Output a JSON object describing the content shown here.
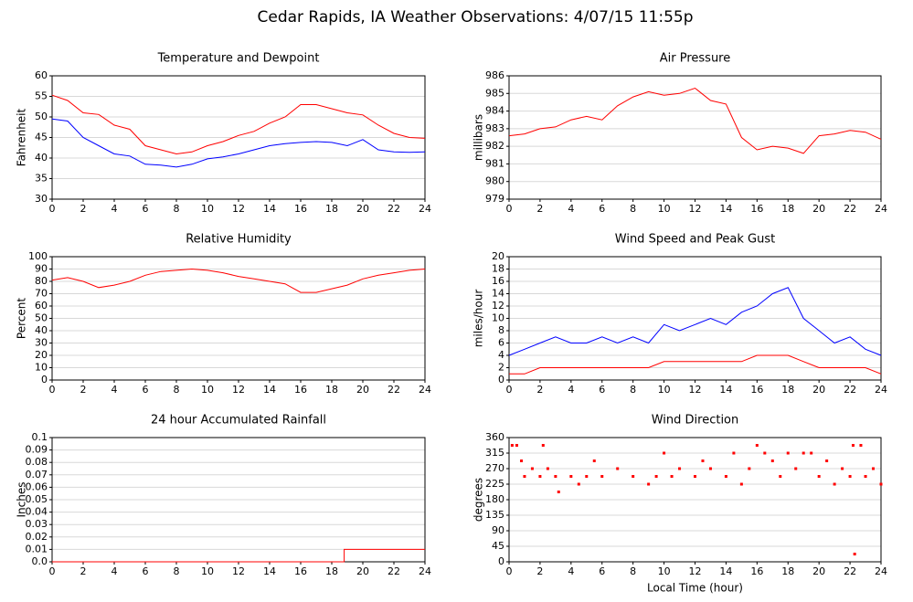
{
  "title": "Cedar Rapids, IA Weather Observations: 4/07/15 11:55p",
  "chart_data": [
    {
      "type": "line",
      "title": "Temperature and Dewpoint",
      "ylabel": "Fahrenheit",
      "x": [
        0,
        1,
        2,
        3,
        4,
        5,
        6,
        7,
        8,
        9,
        10,
        11,
        12,
        13,
        14,
        15,
        16,
        17,
        18,
        19,
        20,
        21,
        22,
        23,
        24
      ],
      "series": [
        {
          "color": "#ff0000",
          "values": [
            55.3,
            54,
            51,
            50.6,
            48,
            47,
            43,
            42,
            41,
            41.5,
            43,
            44,
            45.5,
            46.5,
            48.5,
            50,
            53,
            53,
            52,
            51,
            50.5,
            48,
            46,
            45,
            44.8
          ]
        },
        {
          "color": "#0000ff",
          "values": [
            49.5,
            49,
            45,
            43,
            41,
            40.5,
            38.5,
            38.3,
            37.8,
            38.5,
            39.8,
            40.3,
            41,
            42,
            43,
            43.5,
            43.8,
            44,
            43.8,
            43,
            44.5,
            42,
            41.5,
            41.4,
            41.5
          ]
        }
      ],
      "xlim": [
        0,
        24
      ],
      "xticks": [
        0,
        2,
        4,
        6,
        8,
        10,
        12,
        14,
        16,
        18,
        20,
        22,
        24
      ],
      "ylim": [
        30,
        60
      ],
      "yticks": [
        30,
        35,
        40,
        45,
        50,
        55,
        60
      ],
      "grid": true
    },
    {
      "type": "line",
      "title": "Air Pressure",
      "ylabel": "millibars",
      "x": [
        0,
        1,
        2,
        3,
        4,
        5,
        6,
        7,
        8,
        9,
        10,
        11,
        12,
        13,
        14,
        15,
        16,
        17,
        18,
        19,
        20,
        21,
        22,
        23,
        24
      ],
      "series": [
        {
          "color": "#ff0000",
          "values": [
            982.6,
            982.7,
            983,
            983.1,
            983.5,
            983.7,
            983.5,
            984.3,
            984.8,
            985.1,
            984.9,
            985,
            985.3,
            984.6,
            984.4,
            982.5,
            981.8,
            982,
            981.9,
            981.6,
            982.6,
            982.7,
            982.9,
            982.8,
            982.4
          ]
        }
      ],
      "xlim": [
        0,
        24
      ],
      "xticks": [
        0,
        2,
        4,
        6,
        8,
        10,
        12,
        14,
        16,
        18,
        20,
        22,
        24
      ],
      "ylim": [
        979,
        986
      ],
      "yticks": [
        979,
        980,
        981,
        982,
        983,
        984,
        985,
        986
      ],
      "grid": true
    },
    {
      "type": "line",
      "title": "Relative Humidity",
      "ylabel": "Percent",
      "x": [
        0,
        1,
        2,
        3,
        4,
        5,
        6,
        7,
        8,
        9,
        10,
        11,
        12,
        13,
        14,
        15,
        16,
        17,
        18,
        19,
        20,
        21,
        22,
        23,
        24
      ],
      "series": [
        {
          "color": "#ff0000",
          "values": [
            81,
            83,
            80,
            75,
            77,
            80,
            85,
            88,
            89,
            90,
            89,
            87,
            84,
            82,
            80,
            78,
            71,
            71,
            74,
            77,
            82,
            85,
            87,
            89,
            90
          ]
        }
      ],
      "xlim": [
        0,
        24
      ],
      "xticks": [
        0,
        2,
        4,
        6,
        8,
        10,
        12,
        14,
        16,
        18,
        20,
        22,
        24
      ],
      "ylim": [
        0,
        100
      ],
      "yticks": [
        0,
        10,
        20,
        30,
        40,
        50,
        60,
        70,
        80,
        90,
        100
      ],
      "grid": true
    },
    {
      "type": "line",
      "title": "Wind Speed and Peak Gust",
      "ylabel": "miles/hour",
      "x": [
        0,
        1,
        2,
        3,
        4,
        5,
        6,
        7,
        8,
        9,
        10,
        11,
        12,
        13,
        14,
        15,
        16,
        17,
        18,
        19,
        20,
        21,
        22,
        23,
        24
      ],
      "series": [
        {
          "color": "#0000ff",
          "values": [
            4,
            5,
            6,
            7,
            6,
            6,
            7,
            6,
            7,
            6,
            9,
            8,
            9,
            10,
            9,
            11,
            12,
            14,
            15,
            10,
            8,
            6,
            7,
            5,
            4
          ]
        },
        {
          "color": "#ff0000",
          "values": [
            1,
            1,
            2,
            2,
            2,
            2,
            2,
            2,
            2,
            2,
            3,
            3,
            3,
            3,
            3,
            3,
            4,
            4,
            4,
            3,
            2,
            2,
            2,
            2,
            1
          ]
        }
      ],
      "xlim": [
        0,
        24
      ],
      "xticks": [
        0,
        2,
        4,
        6,
        8,
        10,
        12,
        14,
        16,
        18,
        20,
        22,
        24
      ],
      "ylim": [
        0,
        20
      ],
      "yticks": [
        0,
        2,
        4,
        6,
        8,
        10,
        12,
        14,
        16,
        18,
        20
      ],
      "grid": true
    },
    {
      "type": "line",
      "title": "24 hour Accumulated Rainfall",
      "ylabel": "Inches",
      "x": [
        0,
        18.8,
        18.8,
        24
      ],
      "series": [
        {
          "color": "#ff0000",
          "values": [
            0,
            0,
            0.01,
            0.01
          ]
        }
      ],
      "xlim": [
        0,
        24
      ],
      "xticks": [
        0,
        2,
        4,
        6,
        8,
        10,
        12,
        14,
        16,
        18,
        20,
        22,
        24
      ],
      "ylim": [
        0,
        0.1
      ],
      "yticks": [
        {
          "value": 0,
          "label": "0.0"
        },
        0.01,
        0.02,
        0.03,
        0.04,
        0.05,
        0.06,
        0.07,
        0.08,
        0.09,
        0.1
      ],
      "grid": true
    },
    {
      "type": "scatter",
      "title": "Wind Direction",
      "ylabel": "degrees",
      "xlabel": "Local Time (hour)",
      "x": [
        0.2,
        0.5,
        0.8,
        1,
        1.5,
        2,
        2.2,
        2.5,
        3,
        3.2,
        4,
        4.5,
        5,
        5.5,
        6,
        7,
        8,
        9,
        9.5,
        10,
        10.5,
        11,
        12,
        12.5,
        13,
        14,
        14.5,
        15,
        15.5,
        16,
        16.5,
        17,
        17.5,
        18,
        18.5,
        19,
        19.5,
        20,
        20.5,
        21,
        21.5,
        22,
        22.2,
        22.3,
        22.7,
        23,
        23.5,
        24
      ],
      "series": [
        {
          "color": "#ff0000",
          "values": [
            337.5,
            337.5,
            292.5,
            247.5,
            270,
            247.5,
            337.5,
            270,
            247.5,
            202.5,
            247.5,
            225,
            247.5,
            292.5,
            247.5,
            270,
            247.5,
            225,
            247.5,
            315,
            247.5,
            270,
            247.5,
            292.5,
            270,
            247.5,
            315,
            225,
            270,
            337.5,
            315,
            292.5,
            247.5,
            315,
            270,
            315,
            315,
            247.5,
            292.5,
            225,
            270,
            247.5,
            337.5,
            22.5,
            337.5,
            247.5,
            270,
            225
          ]
        }
      ],
      "xlim": [
        0,
        24
      ],
      "xticks": [
        0,
        2,
        4,
        6,
        8,
        10,
        12,
        14,
        16,
        18,
        20,
        22,
        24
      ],
      "ylim": [
        0,
        360
      ],
      "yticks": [
        0,
        45,
        90,
        135,
        180,
        225,
        270,
        315,
        360
      ],
      "grid": true
    }
  ]
}
